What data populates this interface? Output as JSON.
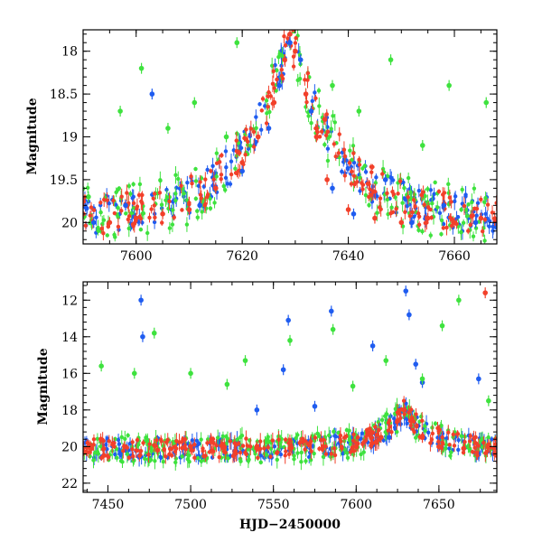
{
  "figure": {
    "xlabel": "HJD−2450000",
    "series_colors": {
      "blue": "#1f5cf0",
      "green": "#3ee23e",
      "red": "#f2402a"
    }
  },
  "chart_data": [
    {
      "type": "scatter",
      "panel": "top",
      "ylabel": "Magnitude",
      "xlabel": "",
      "xlim": [
        7590,
        7668
      ],
      "ylim": [
        20.25,
        17.75
      ],
      "y_inverted": true,
      "xticks": [
        7600,
        7620,
        7640,
        7660
      ],
      "yticks": [
        18,
        18.5,
        19,
        19.5,
        20
      ],
      "ytick_labels": [
        "18",
        "18.5",
        "19",
        "19.5",
        "20"
      ],
      "baseline_mag": 19.95,
      "peak": {
        "x": 7629,
        "y": 17.8
      },
      "series": [
        {
          "color": "red",
          "points": [
            [
              7590,
              19.9
            ],
            [
              7595,
              20.0
            ],
            [
              7600,
              19.95
            ],
            [
              7605,
              19.9
            ],
            [
              7610,
              19.85
            ],
            [
              7615,
              19.6
            ],
            [
              7620,
              19.3
            ],
            [
              7623,
              19.0
            ],
            [
              7626,
              18.6
            ],
            [
              7628,
              18.1
            ],
            [
              7629,
              17.8
            ],
            [
              7630,
              18.0
            ],
            [
              7632,
              18.5
            ],
            [
              7634,
              19.0
            ],
            [
              7636,
              19.5
            ],
            [
              7640,
              19.85
            ],
            [
              7645,
              19.95
            ],
            [
              7650,
              20.0
            ],
            [
              7655,
              19.95
            ],
            [
              7660,
              20.0
            ],
            [
              7665,
              19.95
            ]
          ]
        },
        {
          "color": "blue",
          "points": [
            [
              7592,
              20.0
            ],
            [
              7598,
              19.8
            ],
            [
              7603,
              18.5
            ],
            [
              7612,
              19.8
            ],
            [
              7620,
              19.4
            ],
            [
              7625,
              18.9
            ],
            [
              7627,
              18.4
            ],
            [
              7629,
              17.9
            ],
            [
              7631,
              18.1
            ],
            [
              7633,
              18.7
            ],
            [
              7637,
              19.6
            ],
            [
              7641,
              19.9
            ],
            [
              7647,
              19.5
            ],
            [
              7652,
              20.0
            ],
            [
              7658,
              19.8
            ],
            [
              7664,
              20.0
            ]
          ]
        },
        {
          "color": "green",
          "points": [
            [
              7591,
              19.7
            ],
            [
              7597,
              18.7
            ],
            [
              7601,
              18.2
            ],
            [
              7606,
              18.9
            ],
            [
              7611,
              18.6
            ],
            [
              7617,
              19.0
            ],
            [
              7619,
              17.9
            ],
            [
              7637,
              18.4
            ],
            [
              7642,
              18.7
            ],
            [
              7648,
              18.1
            ],
            [
              7654,
              19.1
            ],
            [
              7659,
              18.4
            ],
            [
              7666,
              18.6
            ]
          ]
        }
      ]
    },
    {
      "type": "scatter",
      "panel": "bottom",
      "ylabel": "Magnitude",
      "xlabel": "HJD−2450000",
      "xlim": [
        7435,
        7685
      ],
      "ylim": [
        22.5,
        11.0
      ],
      "y_inverted": true,
      "xticks": [
        7450,
        7500,
        7550,
        7600,
        7650
      ],
      "yticks": [
        12,
        14,
        16,
        18,
        20,
        22
      ],
      "ytick_labels": [
        "12",
        "14",
        "16",
        "18",
        "20",
        "22"
      ],
      "baseline_mag": 20.1,
      "peak": {
        "x": 7629,
        "y": 18.0
      },
      "series": [
        {
          "color": "red",
          "points": [
            [
              7440,
              20.1
            ],
            [
              7460,
              20.0
            ],
            [
              7480,
              20.2
            ],
            [
              7500,
              20.0
            ],
            [
              7520,
              20.1
            ],
            [
              7540,
              20.0
            ],
            [
              7560,
              20.1
            ],
            [
              7580,
              20.0
            ],
            [
              7600,
              20.0
            ],
            [
              7615,
              19.5
            ],
            [
              7625,
              18.6
            ],
            [
              7629,
              18.0
            ],
            [
              7633,
              18.6
            ],
            [
              7640,
              19.5
            ],
            [
              7650,
              20.0
            ],
            [
              7665,
              20.1
            ],
            [
              7680,
              19.9
            ],
            [
              7678,
              11.6
            ]
          ]
        },
        {
          "color": "blue",
          "points": [
            [
              7470,
              12.0
            ],
            [
              7471,
              14.0
            ],
            [
              7540,
              18.0
            ],
            [
              7556,
              15.8
            ],
            [
              7559,
              13.1
            ],
            [
              7575,
              17.8
            ],
            [
              7585,
              12.6
            ],
            [
              7610,
              14.5
            ],
            [
              7630,
              11.5
            ],
            [
              7632,
              12.8
            ],
            [
              7636,
              15.5
            ],
            [
              7640,
              16.5
            ],
            [
              7674,
              16.3
            ],
            [
              7620,
              19.5
            ]
          ]
        },
        {
          "color": "green",
          "points": [
            [
              7446,
              15.6
            ],
            [
              7466,
              16.0
            ],
            [
              7478,
              13.8
            ],
            [
              7500,
              16.0
            ],
            [
              7522,
              16.6
            ],
            [
              7533,
              15.3
            ],
            [
              7560,
              14.2
            ],
            [
              7586,
              13.6
            ],
            [
              7598,
              16.7
            ],
            [
              7618,
              15.3
            ],
            [
              7640,
              16.3
            ],
            [
              7652,
              13.4
            ],
            [
              7662,
              12.0
            ],
            [
              7680,
              17.5
            ]
          ]
        }
      ]
    }
  ]
}
